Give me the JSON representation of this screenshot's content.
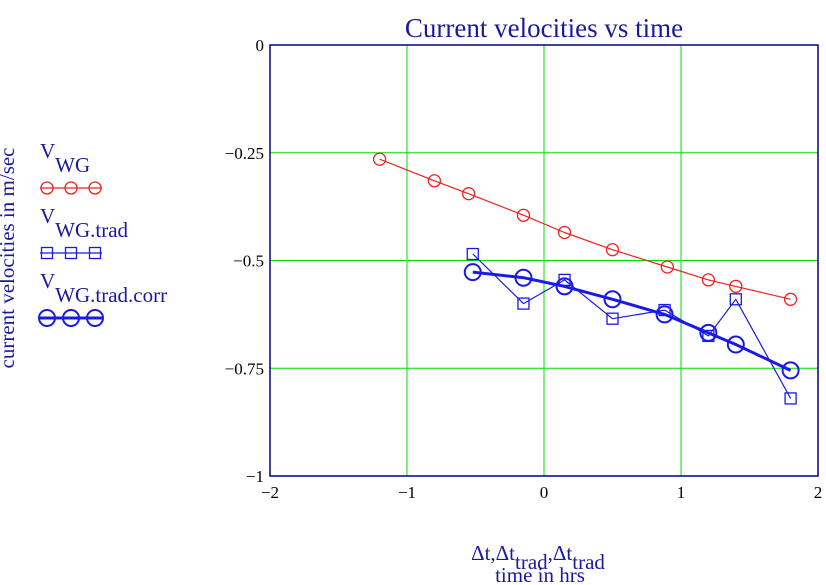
{
  "chart_data": {
    "type": "line",
    "title": "Current velocities vs time",
    "xlabel_parts": {
      "symbol": "Δt",
      "sep1": ",",
      "symbol2": "Δt",
      "sub2": "trad",
      "sep2": ",",
      "symbol3": "Δt",
      "sub3": "trad"
    },
    "xlabel_unit": "time in hrs",
    "ylabel": "current velocities in m/sec",
    "xlim": [
      -2,
      2
    ],
    "ylim": [
      -1,
      0
    ],
    "xticks": [
      {
        "value": -2,
        "label": "−2"
      },
      {
        "value": -1,
        "label": "−1"
      },
      {
        "value": 0,
        "label": "0"
      },
      {
        "value": 1,
        "label": "1"
      },
      {
        "value": 2,
        "label": "2"
      }
    ],
    "yticks": [
      {
        "value": 0,
        "label": "0"
      },
      {
        "value": -0.25,
        "label": "−0.25"
      },
      {
        "value": -0.5,
        "label": "−0.5"
      },
      {
        "value": -0.75,
        "label": "−0.75"
      },
      {
        "value": -1,
        "label": "−1"
      }
    ],
    "grid": true,
    "grid_color": "#00dd00",
    "legend_position": "left",
    "series": [
      {
        "name_main": "V",
        "name_sub": "WG",
        "color": "#ee2222",
        "marker": "circle",
        "line_width": 1.2,
        "x": [
          -1.2,
          -0.8,
          -0.55,
          -0.15,
          0.15,
          0.5,
          0.9,
          1.2,
          1.4,
          1.8
        ],
        "y": [
          -0.265,
          -0.315,
          -0.345,
          -0.395,
          -0.435,
          -0.475,
          -0.515,
          -0.545,
          -0.56,
          -0.59
        ]
      },
      {
        "name_main": "V",
        "name_sub": "WG.trad",
        "color": "#1a1ae6",
        "marker": "square",
        "line_width": 1.2,
        "x": [
          -0.52,
          -0.15,
          0.15,
          0.5,
          0.88,
          1.2,
          1.4,
          1.8
        ],
        "y": [
          -0.485,
          -0.6,
          -0.545,
          -0.635,
          -0.615,
          -0.675,
          -0.59,
          -0.82
        ]
      },
      {
        "name_main": "V",
        "name_sub": "WG.trad.corr",
        "color": "#1a1ae6",
        "marker": "circle-large",
        "line_width": 3,
        "x": [
          -0.52,
          -0.15,
          0.15,
          0.5,
          0.88,
          1.2,
          1.4,
          1.8
        ],
        "y": [
          -0.527,
          -0.54,
          -0.56,
          -0.59,
          -0.625,
          -0.668,
          -0.695,
          -0.755
        ]
      }
    ]
  }
}
